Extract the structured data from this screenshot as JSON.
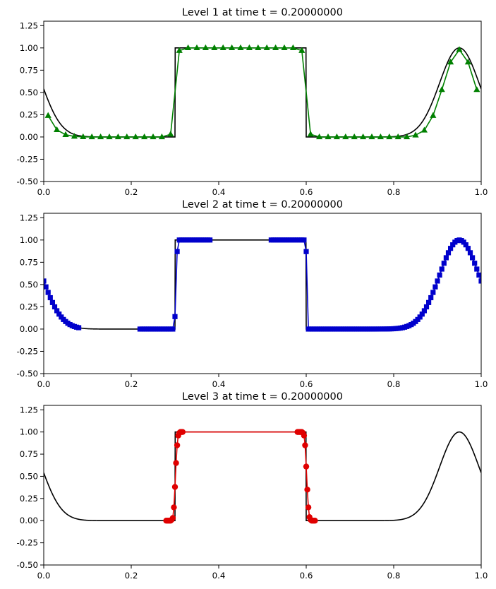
{
  "chart_data": [
    {
      "type": "line",
      "title": "Level 1 at time t =     0.20000000",
      "xlabel": "",
      "ylabel": "",
      "xlim": [
        0,
        1
      ],
      "ylim": [
        -0.5,
        1.3
      ],
      "xticks": [
        "0.0",
        "0.2",
        "0.4",
        "0.6",
        "0.8",
        "1.0"
      ],
      "yticks": [
        "-0.50",
        "-0.25",
        "0.00",
        "0.25",
        "0.50",
        "0.75",
        "1.00",
        "1.25"
      ],
      "grid": false,
      "reference_curve": {
        "color": "#000000",
        "shape": "box on [0.3, 0.6] plus Gaussian bump centred at 0.95"
      },
      "series": [
        {
          "color": "#008000",
          "marker": "triangle",
          "x": [
            0.01,
            0.03,
            0.05,
            0.07,
            0.09,
            0.11,
            0.13,
            0.15,
            0.17,
            0.19,
            0.21,
            0.23,
            0.25,
            0.27,
            0.29,
            0.31,
            0.33,
            0.35,
            0.37,
            0.39,
            0.41,
            0.43,
            0.45,
            0.47,
            0.49,
            0.51,
            0.53,
            0.55,
            0.57,
            0.59,
            0.61,
            0.63,
            0.65,
            0.67,
            0.69,
            0.71,
            0.73,
            0.75,
            0.77,
            0.79,
            0.81,
            0.83,
            0.85,
            0.87,
            0.89,
            0.91,
            0.93,
            0.95,
            0.97,
            0.99
          ],
          "y": [
            0.24,
            0.08,
            0.025,
            0.006,
            0.001,
            0,
            0,
            0,
            0,
            0,
            0,
            0,
            0,
            0,
            0.03,
            0.97,
            1,
            1,
            1,
            1,
            1,
            1,
            1,
            1,
            1,
            1,
            1,
            1,
            1,
            0.97,
            0.03,
            0,
            0,
            0,
            0,
            0,
            0,
            0,
            0,
            0,
            0,
            0,
            0.02,
            0.075,
            0.24,
            0.53,
            0.84,
            0.98,
            0.84,
            0.53
          ]
        }
      ]
    },
    {
      "type": "line",
      "title": "Level 2 at time t =     0.20000000",
      "xlabel": "",
      "ylabel": "",
      "xlim": [
        0,
        1
      ],
      "ylim": [
        -0.5,
        1.3
      ],
      "xticks": [
        "0.0",
        "0.2",
        "0.4",
        "0.6",
        "0.8",
        "1.0"
      ],
      "yticks": [
        "-0.50",
        "-0.25",
        "0.00",
        "0.25",
        "0.50",
        "0.75",
        "1.00",
        "1.25"
      ],
      "grid": false,
      "reference_curve": {
        "color": "#000000",
        "shape": "box on [0.3, 0.6] plus Gaussian bump centred at 0.95"
      },
      "series": [
        {
          "color": "#0000cc",
          "marker": "square",
          "x_ranges": [
            [
              0.0,
              0.08
            ],
            [
              0.22,
              0.38
            ],
            [
              0.52,
              1.0
            ]
          ],
          "x_spacing": 0.005
        }
      ]
    },
    {
      "type": "line",
      "title": "Level 3 at time t =     0.20000000",
      "xlabel": "",
      "ylabel": "",
      "xlim": [
        0,
        1
      ],
      "ylim": [
        -0.5,
        1.3
      ],
      "xticks": [
        "0.0",
        "0.2",
        "0.4",
        "0.6",
        "0.8",
        "1.0"
      ],
      "yticks": [
        "-0.50",
        "-0.25",
        "0.00",
        "0.25",
        "0.50",
        "0.75",
        "1.00",
        "1.25"
      ],
      "grid": false,
      "reference_curve": {
        "color": "#000000",
        "shape": "box on [0.3, 0.6] plus Gaussian bump centred at 0.95"
      },
      "series": [
        {
          "color": "#e00000",
          "marker": "circle",
          "x": [
            0.28,
            0.2825,
            0.285,
            0.2875,
            0.29,
            0.2925,
            0.295,
            0.2975,
            0.3,
            0.3025,
            0.305,
            0.3075,
            0.31,
            0.3125,
            0.315,
            0.3175,
            0.58,
            0.5825,
            0.585,
            0.5875,
            0.59,
            0.5925,
            0.595,
            0.5975,
            0.6,
            0.6025,
            0.605,
            0.6075,
            0.61,
            0.6125,
            0.615,
            0.6175,
            0.62
          ],
          "y": [
            0,
            0,
            0,
            0,
            0,
            0.01,
            0.03,
            0.15,
            0.38,
            0.65,
            0.85,
            0.96,
            0.99,
            1,
            1,
            1,
            1,
            1,
            1,
            1,
            1,
            0.99,
            0.96,
            0.85,
            0.61,
            0.35,
            0.15,
            0.04,
            0.01,
            0,
            0,
            0,
            0
          ]
        }
      ]
    }
  ]
}
